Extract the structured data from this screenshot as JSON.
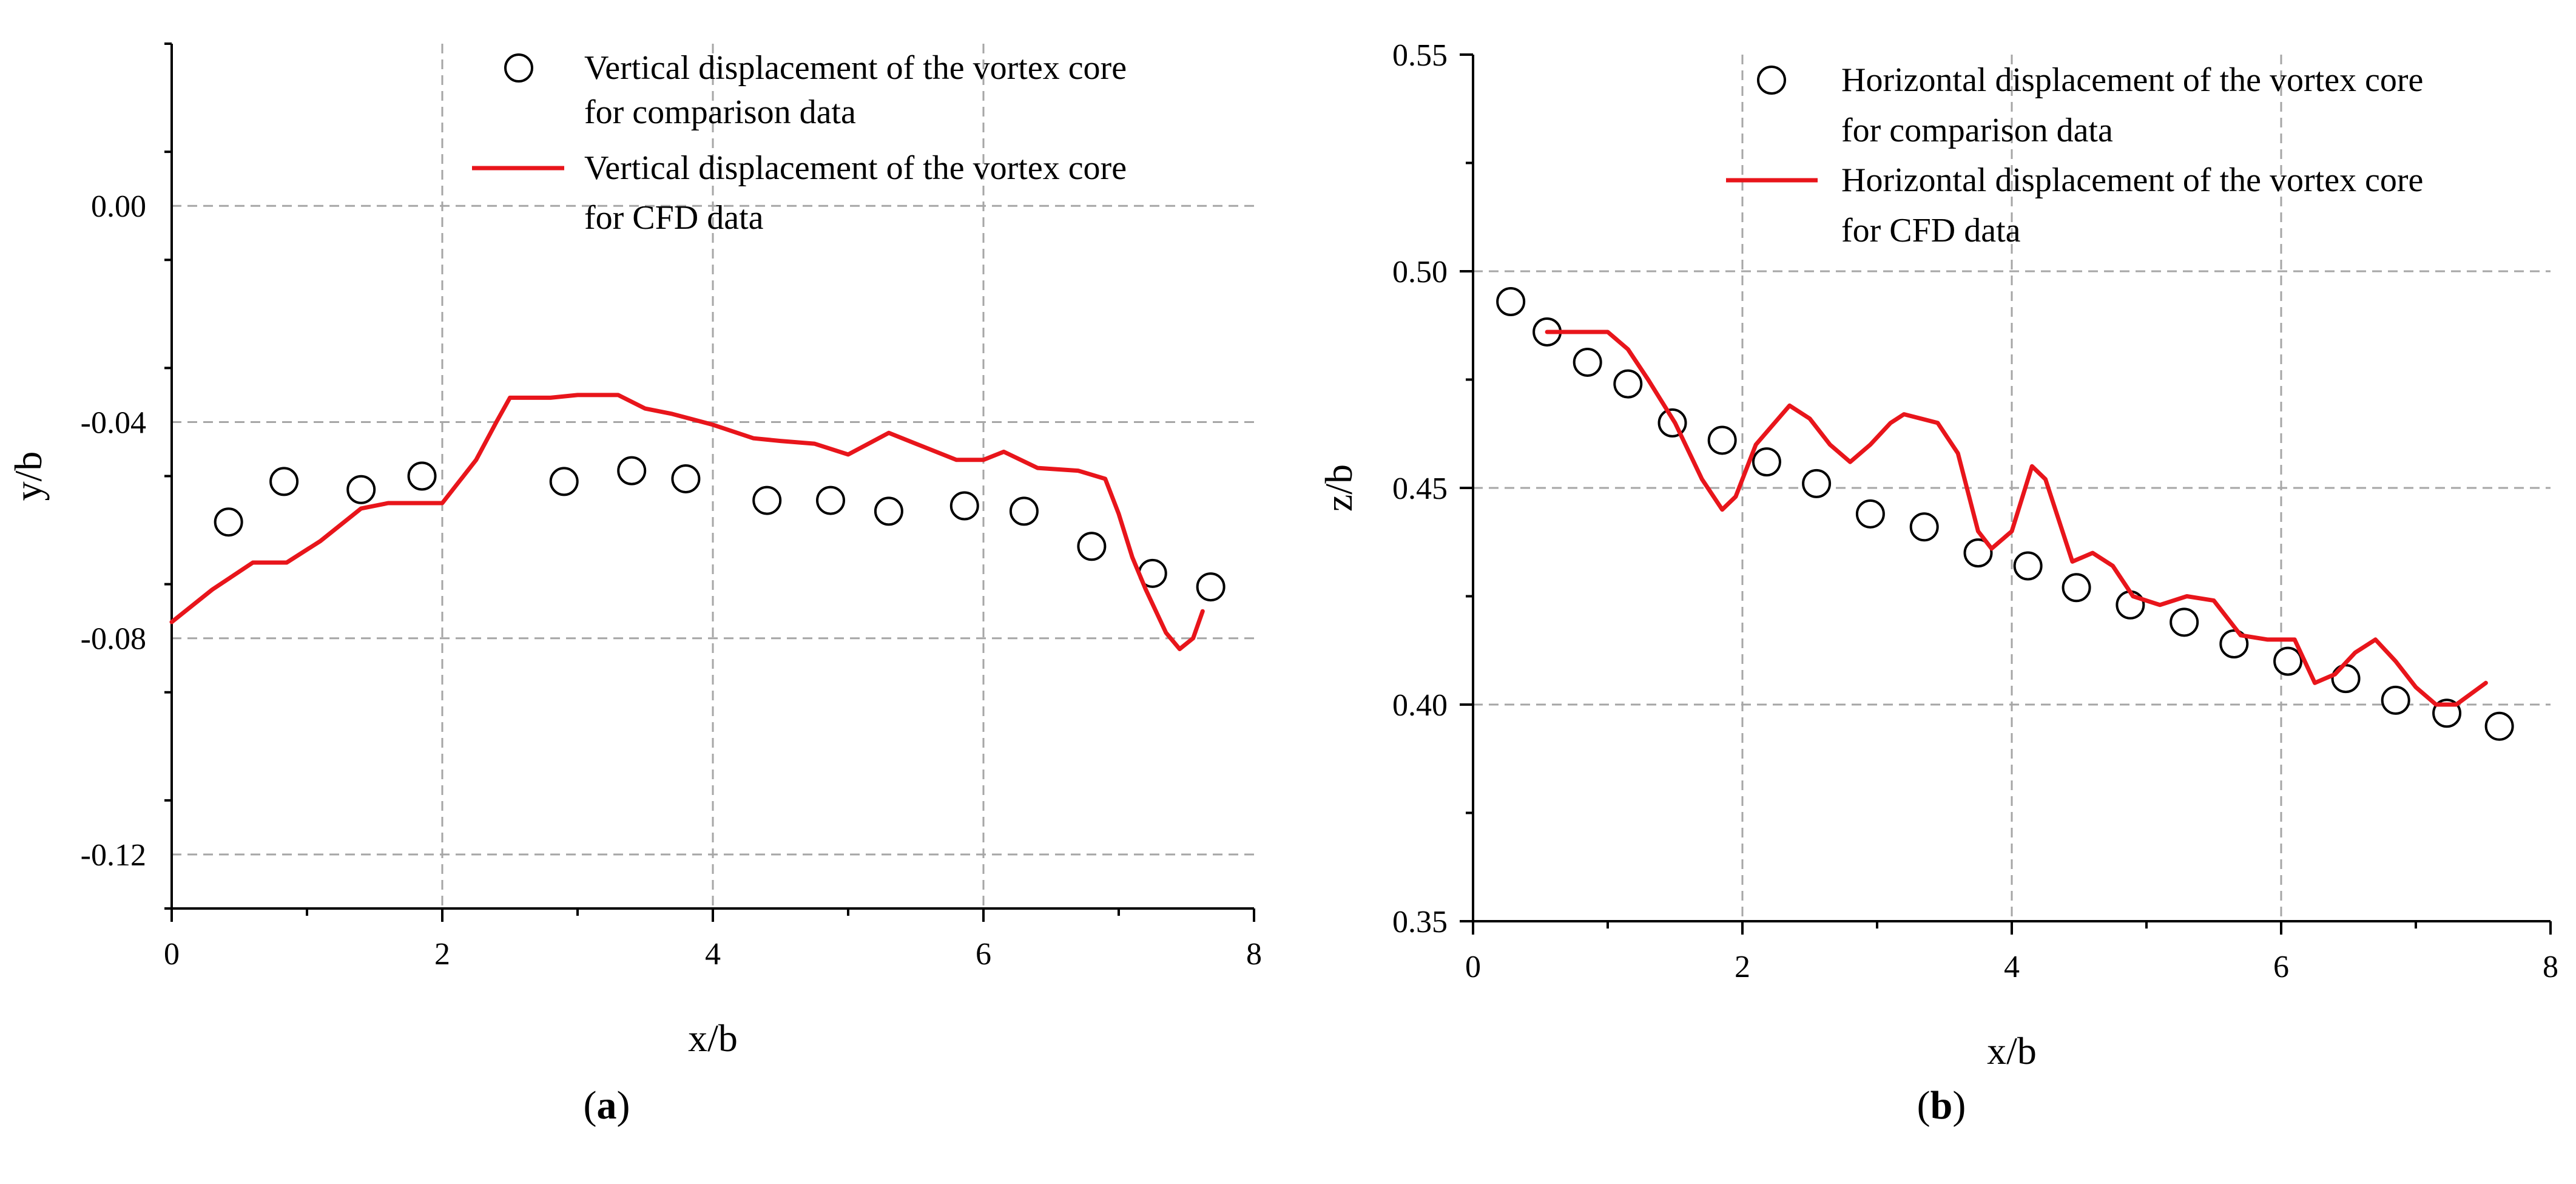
{
  "chart_data": [
    {
      "type": "line",
      "panel_label": "(a)",
      "xlabel": "x/b",
      "ylabel": "y/b",
      "xlim": [
        0,
        8
      ],
      "ylim": [
        -0.13,
        0.03
      ],
      "xticks": [
        0,
        2,
        4,
        6,
        8
      ],
      "yticks": [
        -0.12,
        -0.08,
        -0.04,
        0.0
      ],
      "xtick_labels": [
        "0",
        "2",
        "4",
        "6",
        "8"
      ],
      "ytick_labels": [
        "-0.12",
        "-0.08",
        "-0.04",
        "0.00"
      ],
      "grid": true,
      "legend_position": "top-right",
      "series": [
        {
          "name": "Vertical displacement of the vortex core for comparison data",
          "legend_lines": [
            "Vertical displacement of the vortex core",
            "for comparison data"
          ],
          "style": "markers",
          "color": "#000000",
          "x": [
            0.42,
            0.83,
            1.4,
            1.85,
            2.9,
            3.4,
            3.8,
            4.4,
            4.87,
            5.3,
            5.86,
            6.3,
            6.8,
            7.25,
            7.68
          ],
          "y": [
            -0.0585,
            -0.051,
            -0.0525,
            -0.05,
            -0.051,
            -0.049,
            -0.0505,
            -0.0545,
            -0.0545,
            -0.0565,
            -0.0555,
            -0.0565,
            -0.063,
            -0.068,
            -0.0705
          ]
        },
        {
          "name": "Vertical displacement of the vortex core for CFD data",
          "legend_lines": [
            "Vertical displacement of the vortex core",
            "for CFD data"
          ],
          "style": "line",
          "color": "#e8151b",
          "x": [
            0.0,
            0.3,
            0.6,
            0.85,
            1.1,
            1.4,
            1.6,
            2.0,
            2.25,
            2.4,
            2.5,
            2.8,
            3.0,
            3.3,
            3.5,
            3.7,
            4.0,
            4.3,
            4.5,
            4.75,
            5.0,
            5.15,
            5.3,
            5.5,
            5.8,
            6.0,
            6.15,
            6.4,
            6.7,
            6.9,
            7.0,
            7.1,
            7.2,
            7.35,
            7.45,
            7.55,
            7.62
          ],
          "y": [
            -0.077,
            -0.071,
            -0.066,
            -0.066,
            -0.062,
            -0.056,
            -0.055,
            -0.055,
            -0.047,
            -0.04,
            -0.0355,
            -0.0355,
            -0.035,
            -0.035,
            -0.0375,
            -0.0385,
            -0.0405,
            -0.043,
            -0.0435,
            -0.044,
            -0.046,
            -0.044,
            -0.042,
            -0.044,
            -0.047,
            -0.047,
            -0.0455,
            -0.0485,
            -0.049,
            -0.0505,
            -0.057,
            -0.065,
            -0.071,
            -0.079,
            -0.082,
            -0.08,
            -0.075
          ]
        }
      ]
    },
    {
      "type": "line",
      "panel_label": "(b)",
      "xlabel": "x/b",
      "ylabel": "z/b",
      "xlim": [
        0,
        8
      ],
      "ylim": [
        0.35,
        0.55
      ],
      "xticks": [
        0,
        2,
        4,
        6,
        8
      ],
      "yticks": [
        0.35,
        0.4,
        0.45,
        0.5,
        0.55
      ],
      "xtick_labels": [
        "0",
        "2",
        "4",
        "6",
        "8"
      ],
      "ytick_labels": [
        "0.35",
        "0.40",
        "0.45",
        "0.50",
        "0.55"
      ],
      "grid": true,
      "legend_position": "top-right",
      "series": [
        {
          "name": "Horizontal displacement of the vortex core for comparison data",
          "legend_lines": [
            "Horizontal displacement of the vortex core",
            "for comparison data"
          ],
          "style": "markers",
          "color": "#000000",
          "x": [
            0.28,
            0.55,
            0.85,
            1.15,
            1.48,
            1.85,
            2.18,
            2.55,
            2.95,
            3.35,
            3.75,
            4.12,
            4.48,
            4.88,
            5.28,
            5.65,
            6.05,
            6.48,
            6.85,
            7.23,
            7.62
          ],
          "y": [
            0.493,
            0.486,
            0.479,
            0.474,
            0.465,
            0.461,
            0.456,
            0.451,
            0.444,
            0.441,
            0.435,
            0.432,
            0.427,
            0.423,
            0.419,
            0.414,
            0.41,
            0.406,
            0.401,
            0.398,
            0.395
          ]
        },
        {
          "name": "Horizontal displacement of the vortex core for CFD data",
          "legend_lines": [
            "Horizontal displacement of the vortex core",
            "for CFD data"
          ],
          "style": "line",
          "color": "#e8151b",
          "x": [
            0.55,
            0.8,
            1.0,
            1.15,
            1.3,
            1.5,
            1.7,
            1.85,
            1.95,
            2.1,
            2.35,
            2.5,
            2.65,
            2.8,
            2.95,
            3.1,
            3.2,
            3.45,
            3.6,
            3.75,
            3.85,
            4.0,
            4.15,
            4.25,
            4.45,
            4.6,
            4.75,
            4.9,
            5.1,
            5.3,
            5.5,
            5.7,
            5.9,
            6.1,
            6.25,
            6.4,
            6.55,
            6.7,
            6.85,
            7.0,
            7.15,
            7.3,
            7.52
          ],
          "y": [
            0.486,
            0.486,
            0.486,
            0.482,
            0.475,
            0.465,
            0.452,
            0.445,
            0.448,
            0.46,
            0.469,
            0.466,
            0.46,
            0.456,
            0.46,
            0.465,
            0.467,
            0.465,
            0.458,
            0.44,
            0.436,
            0.44,
            0.455,
            0.452,
            0.433,
            0.435,
            0.432,
            0.425,
            0.423,
            0.425,
            0.424,
            0.416,
            0.415,
            0.415,
            0.405,
            0.407,
            0.412,
            0.415,
            0.41,
            0.404,
            0.4,
            0.4,
            0.405
          ]
        }
      ]
    }
  ]
}
